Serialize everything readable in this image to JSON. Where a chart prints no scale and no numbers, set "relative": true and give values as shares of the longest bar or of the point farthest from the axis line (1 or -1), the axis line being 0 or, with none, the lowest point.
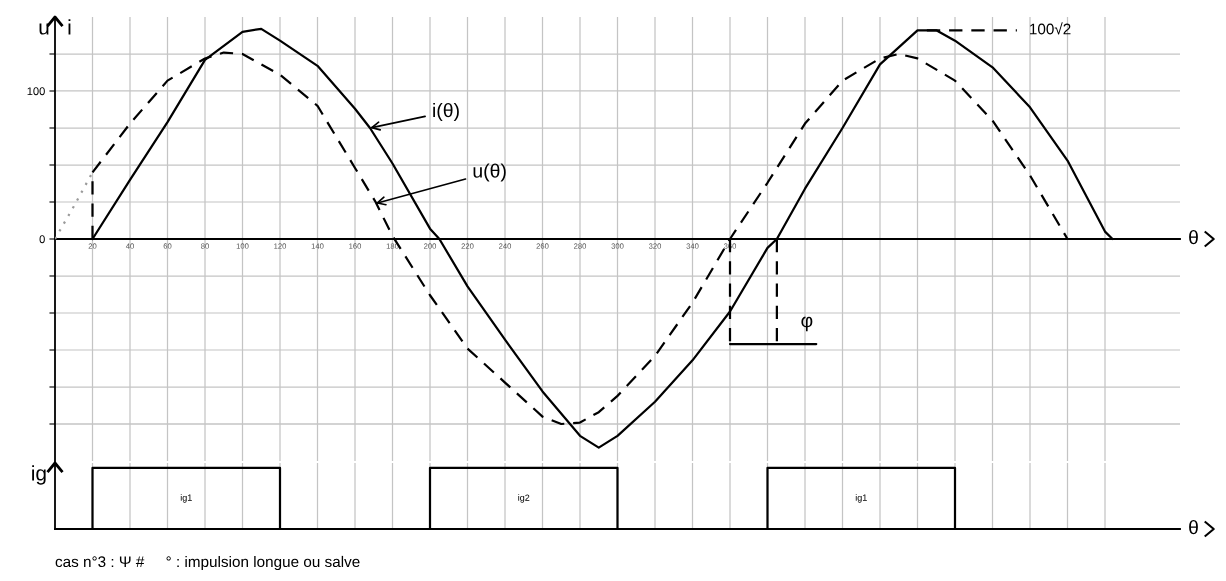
{
  "chart_data": [
    {
      "type": "line",
      "ylabel": "u   i",
      "xlabel": "θ",
      "xlim": [
        0,
        600
      ],
      "ylim": [
        -150,
        150
      ],
      "grid": true,
      "xticks": [
        20,
        40,
        60,
        80,
        100,
        120,
        140,
        160,
        180,
        200,
        220,
        240,
        260,
        280,
        300,
        320,
        340,
        360,
        {
          "value": 380,
          "label": null
        },
        {
          "value": 400,
          "label": null
        },
        {
          "value": 420,
          "label": null
        },
        {
          "value": 440,
          "label": null
        },
        {
          "value": 460,
          "label": null
        },
        {
          "value": 480,
          "label": null
        },
        {
          "value": 500,
          "label": null
        },
        {
          "value": 520,
          "label": null
        },
        {
          "value": 540,
          "label": null
        },
        {
          "value": 560,
          "label": null
        }
      ],
      "yticks": [
        {
          "value": -125,
          "label": null
        },
        {
          "value": -100,
          "label": null
        },
        {
          "value": -75,
          "label": null
        },
        {
          "value": -50,
          "label": null
        },
        {
          "value": -25,
          "label": null
        },
        0,
        {
          "value": 25,
          "label": null
        },
        {
          "value": 50,
          "label": null
        },
        {
          "value": 75,
          "label": null
        },
        100,
        {
          "value": 125,
          "label": null
        }
      ],
      "series": [
        {
          "color": "#000000",
          "line_style": "solid",
          "x": [
            20,
            40,
            60,
            80,
            100,
            110,
            120,
            140,
            160,
            168,
            180,
            200,
            205,
            220,
            240,
            260,
            280,
            290,
            300,
            320,
            340,
            360,
            380,
            385,
            400,
            420,
            440,
            460,
            470,
            480,
            500,
            520,
            540,
            560,
            564
          ],
          "values": [
            0,
            40,
            79,
            121,
            140,
            142,
            134,
            117,
            88,
            75,
            51,
            7,
            0,
            -32,
            -68,
            -103,
            -133,
            -141,
            -133,
            -110,
            -82,
            -49,
            -6,
            0,
            34,
            75,
            118,
            141,
            141,
            134,
            116,
            89,
            53,
            5,
            0
          ]
        },
        {
          "color": "#000000",
          "line_style": "dashed",
          "x": [
            20,
            20,
            40,
            60,
            80,
            90,
            100,
            120,
            140,
            160,
            171,
            180,
            200,
            220,
            240,
            260,
            270,
            280,
            290,
            300,
            320,
            340,
            360,
            380,
            400,
            420,
            440,
            450,
            460,
            480,
            500,
            520,
            540
          ],
          "values": [
            0,
            45,
            78,
            107,
            122,
            126,
            125,
            111,
            90,
            48,
            25,
            2,
            -38,
            -74,
            -97,
            -120,
            -125,
            -124,
            -117,
            -106,
            -79,
            -43,
            0,
            38,
            78,
            107,
            122,
            125,
            122,
            107,
            80,
            43,
            0
          ]
        },
        {
          "color": "#9a9a9a",
          "line_style": "dotted",
          "x": [
            0,
            10,
            20
          ],
          "values": [
            0,
            22,
            45
          ]
        },
        {
          "color": "#000000",
          "line_style": "dashed",
          "x": [
            360,
            360
          ],
          "values": [
            0,
            -71
          ]
        },
        {
          "color": "#000000",
          "line_style": "dashed",
          "x": [
            385,
            385
          ],
          "values": [
            0,
            -71
          ]
        },
        {
          "color": "#000000",
          "line_style": "solid",
          "x": [
            360,
            406
          ],
          "values": [
            -71,
            -71
          ]
        },
        {
          "color": "#000000",
          "line_style": "dashed",
          "x": [
            465,
            513
          ],
          "values": [
            141,
            141
          ]
        }
      ],
      "annotations": [
        {
          "text": "i(θ)",
          "x": 168,
          "y": 75
        },
        {
          "text": "u(θ)",
          "x": 171,
          "y": 24
        },
        {
          "text": "100√2",
          "x": 513,
          "y": 141
        },
        {
          "text": "φ",
          "x": 385,
          "y": -71
        }
      ]
    },
    {
      "type": "line",
      "relative": true,
      "ylabel": "ig",
      "xlabel": "θ",
      "xlim": [
        0,
        600
      ],
      "grid": "x",
      "tick_labels": false,
      "xticks": [
        20,
        40,
        60,
        80,
        100,
        120,
        140,
        160,
        180,
        200,
        220,
        240,
        260,
        280,
        300,
        320,
        340,
        360,
        380,
        400,
        420,
        440,
        460,
        480,
        500,
        520,
        540,
        560
      ],
      "series": [
        {
          "name": "ig1",
          "color": "#000000",
          "x": [
            20,
            20,
            120,
            120
          ],
          "values": [
            0,
            1,
            1,
            0
          ]
        },
        {
          "name": "ig2",
          "color": "#000000",
          "x": [
            200,
            200,
            300,
            300
          ],
          "values": [
            0,
            1,
            1,
            0
          ]
        },
        {
          "name": "ig1",
          "color": "#000000",
          "x": [
            380,
            380,
            480,
            480
          ],
          "values": [
            0,
            1,
            1,
            0
          ]
        }
      ],
      "annotations": [
        "cas n°3 : Ψ #     ° : impulsion longue ou salve"
      ]
    }
  ]
}
